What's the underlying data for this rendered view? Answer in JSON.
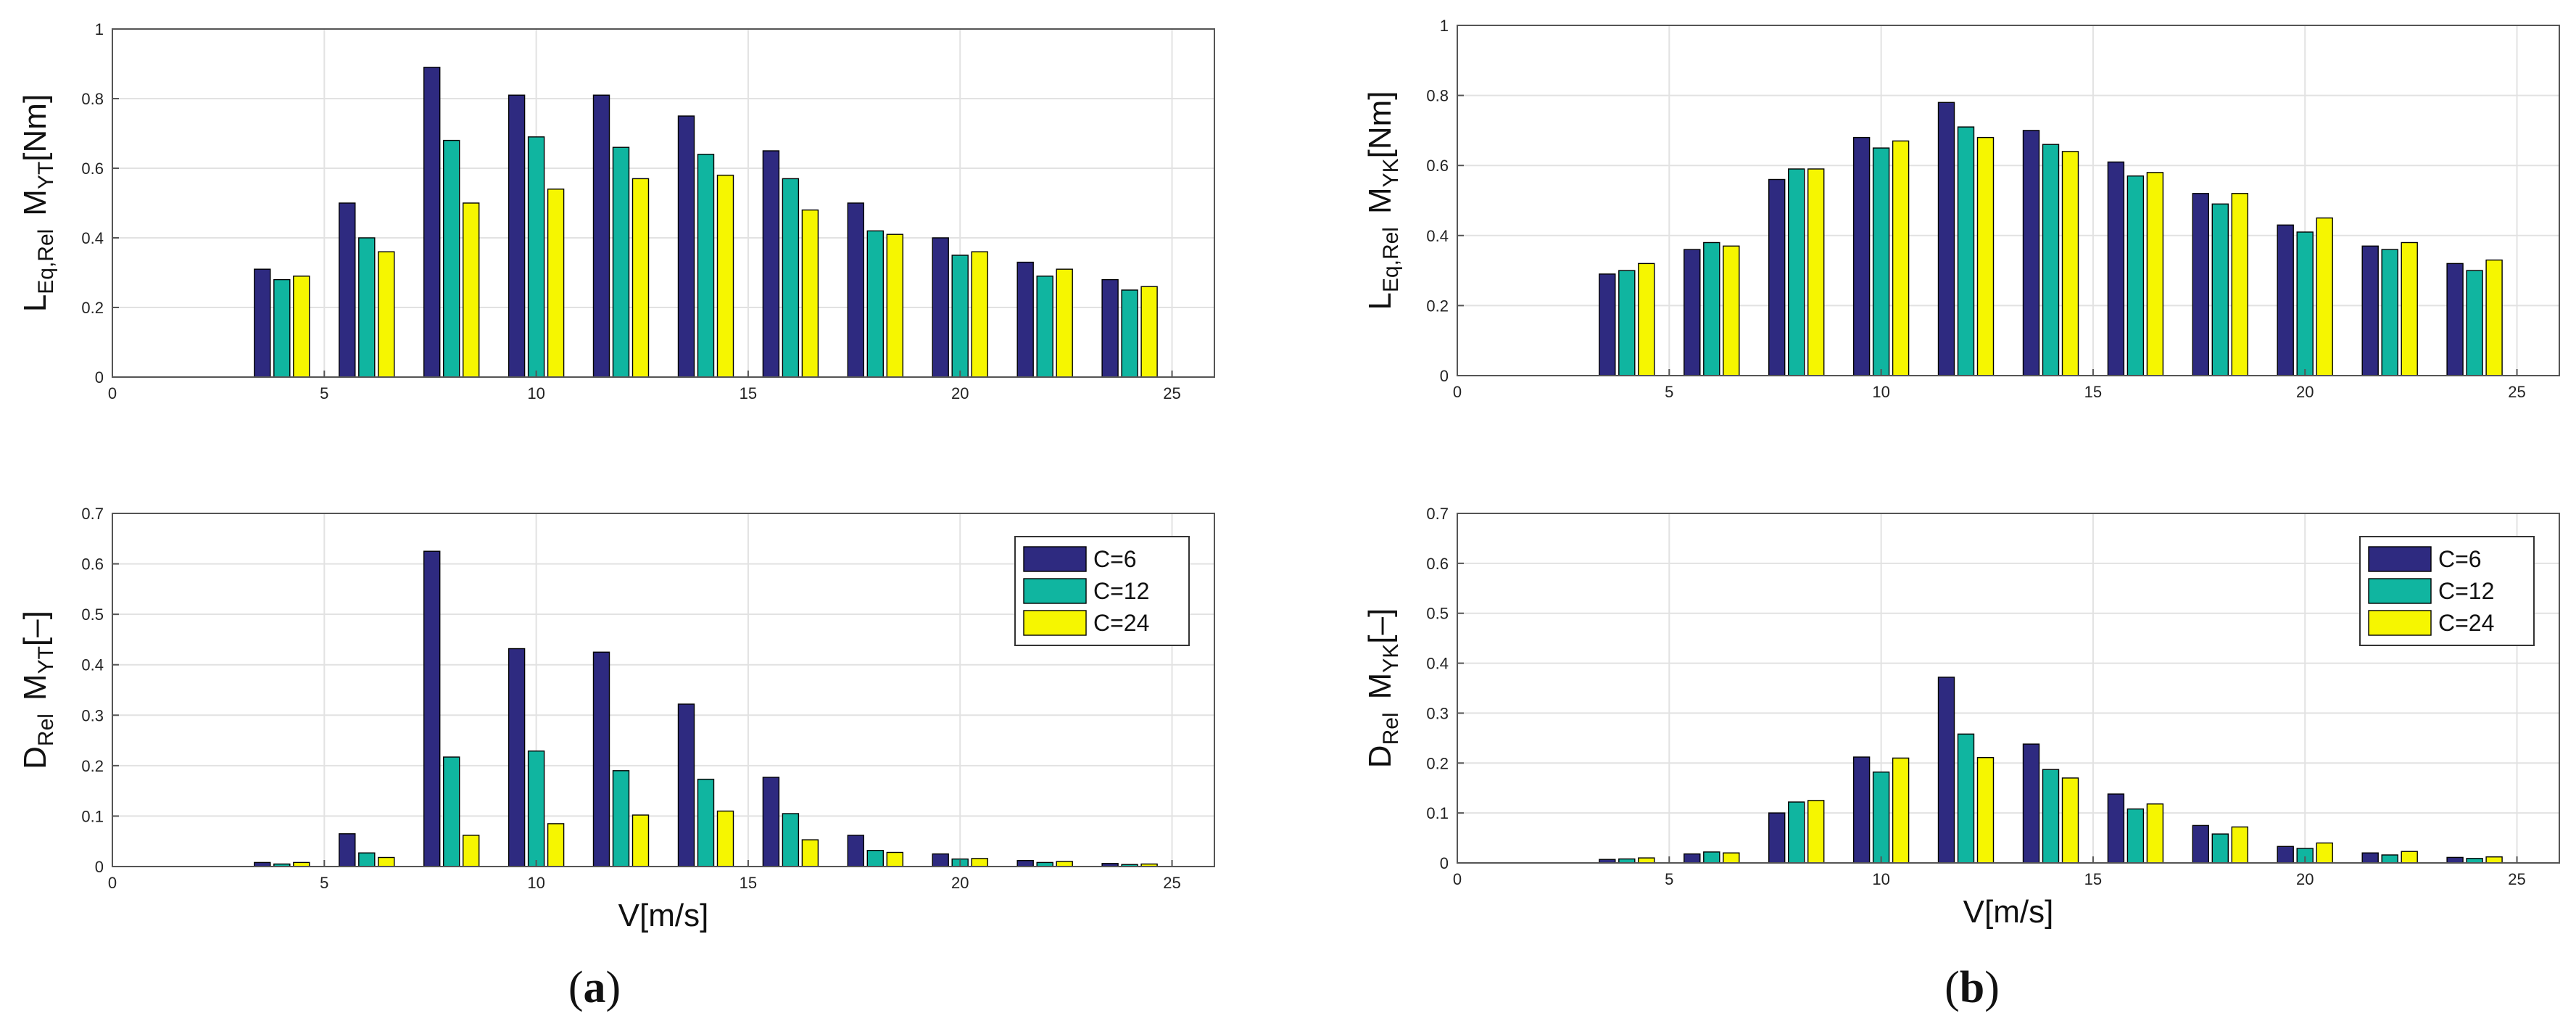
{
  "figure": {
    "captions": [
      {
        "open": "(",
        "letter": "a",
        "close": ")"
      },
      {
        "open": "(",
        "letter": "b",
        "close": ")"
      }
    ]
  },
  "chart_data": [
    {
      "type": "bar",
      "id": "a-top",
      "ylabel": {
        "main": "L",
        "main_sub": "Eq,Rel",
        "var": "M",
        "var_sub": "YT",
        "unit": "[Nm]"
      },
      "xlabel": "",
      "xlim": [
        0,
        26
      ],
      "ylim": [
        0,
        1
      ],
      "xticks": [
        0,
        5,
        10,
        15,
        20,
        25
      ],
      "yticks": [
        0,
        0.2,
        0.4,
        0.6,
        0.8,
        1
      ],
      "grid": true,
      "x": [
        4,
        6,
        8,
        10,
        12,
        14,
        16,
        18,
        20,
        22,
        24
      ],
      "series": [
        {
          "name": "C=6",
          "color": "#2e2a80",
          "values": [
            0.31,
            0.5,
            0.89,
            0.81,
            0.81,
            0.75,
            0.65,
            0.5,
            0.4,
            0.33,
            0.28
          ]
        },
        {
          "name": "C=12",
          "color": "#10b5a0",
          "values": [
            0.28,
            0.4,
            0.68,
            0.69,
            0.66,
            0.64,
            0.57,
            0.42,
            0.35,
            0.29,
            0.25
          ]
        },
        {
          "name": "C=24",
          "color": "#f6f600",
          "values": [
            0.29,
            0.36,
            0.5,
            0.54,
            0.57,
            0.58,
            0.48,
            0.41,
            0.36,
            0.31,
            0.26
          ]
        }
      ]
    },
    {
      "type": "bar",
      "id": "a-bottom",
      "ylabel": {
        "main": "D",
        "main_sub": "Rel",
        "var": "M",
        "var_sub": "YT",
        "unit": "[–]"
      },
      "xlabel": "V[m/s]",
      "xlim": [
        0,
        26
      ],
      "ylim": [
        0,
        0.7
      ],
      "xticks": [
        0,
        5,
        10,
        15,
        20,
        25
      ],
      "yticks": [
        0,
        0.1,
        0.2,
        0.3,
        0.4,
        0.5,
        0.6,
        0.7
      ],
      "grid": true,
      "legend": "top-right",
      "x": [
        4,
        6,
        8,
        10,
        12,
        14,
        16,
        18,
        20,
        22,
        24
      ],
      "series": [
        {
          "name": "C=6",
          "color": "#2e2a80",
          "values": [
            0.008,
            0.065,
            0.625,
            0.432,
            0.425,
            0.322,
            0.177,
            0.062,
            0.025,
            0.012,
            0.006
          ]
        },
        {
          "name": "C=12",
          "color": "#10b5a0",
          "values": [
            0.005,
            0.027,
            0.217,
            0.229,
            0.19,
            0.173,
            0.105,
            0.032,
            0.015,
            0.008,
            0.004
          ]
        },
        {
          "name": "C=24",
          "color": "#f6f600",
          "values": [
            0.008,
            0.018,
            0.062,
            0.085,
            0.102,
            0.11,
            0.053,
            0.028,
            0.016,
            0.01,
            0.005
          ]
        }
      ]
    },
    {
      "type": "bar",
      "id": "b-top",
      "ylabel": {
        "main": "L",
        "main_sub": "Eq,Rel",
        "var": "M",
        "var_sub": "YK",
        "unit": "[Nm]"
      },
      "xlabel": "",
      "xlim": [
        0,
        26
      ],
      "ylim": [
        0,
        1
      ],
      "xticks": [
        0,
        5,
        10,
        15,
        20,
        25
      ],
      "yticks": [
        0,
        0.2,
        0.4,
        0.6,
        0.8,
        1
      ],
      "grid": true,
      "x": [
        4,
        6,
        8,
        10,
        12,
        14,
        16,
        18,
        20,
        22,
        24
      ],
      "series": [
        {
          "name": "C=6",
          "color": "#2e2a80",
          "values": [
            0.29,
            0.36,
            0.56,
            0.68,
            0.78,
            0.7,
            0.61,
            0.52,
            0.43,
            0.37,
            0.32
          ]
        },
        {
          "name": "C=12",
          "color": "#10b5a0",
          "values": [
            0.3,
            0.38,
            0.59,
            0.65,
            0.71,
            0.66,
            0.57,
            0.49,
            0.41,
            0.36,
            0.3
          ]
        },
        {
          "name": "C=24",
          "color": "#f6f600",
          "values": [
            0.32,
            0.37,
            0.59,
            0.67,
            0.68,
            0.64,
            0.58,
            0.52,
            0.45,
            0.38,
            0.33
          ]
        }
      ]
    },
    {
      "type": "bar",
      "id": "b-bottom",
      "ylabel": {
        "main": "D",
        "main_sub": "Rel",
        "var": "M",
        "var_sub": "YK",
        "unit": "[–]"
      },
      "xlabel": "V[m/s]",
      "xlim": [
        0,
        26
      ],
      "ylim": [
        0,
        0.7
      ],
      "xticks": [
        0,
        5,
        10,
        15,
        20,
        25
      ],
      "yticks": [
        0,
        0.1,
        0.2,
        0.3,
        0.4,
        0.5,
        0.6,
        0.7
      ],
      "grid": true,
      "legend": "top-right",
      "x": [
        4,
        6,
        8,
        10,
        12,
        14,
        16,
        18,
        20,
        22,
        24
      ],
      "series": [
        {
          "name": "C=6",
          "color": "#2e2a80",
          "values": [
            0.007,
            0.018,
            0.1,
            0.212,
            0.372,
            0.238,
            0.138,
            0.075,
            0.033,
            0.02,
            0.011
          ]
        },
        {
          "name": "C=12",
          "color": "#10b5a0",
          "values": [
            0.008,
            0.022,
            0.122,
            0.182,
            0.258,
            0.187,
            0.108,
            0.058,
            0.029,
            0.016,
            0.009
          ]
        },
        {
          "name": "C=24",
          "color": "#f6f600",
          "values": [
            0.01,
            0.02,
            0.125,
            0.21,
            0.211,
            0.17,
            0.118,
            0.072,
            0.04,
            0.023,
            0.012
          ]
        }
      ]
    }
  ]
}
